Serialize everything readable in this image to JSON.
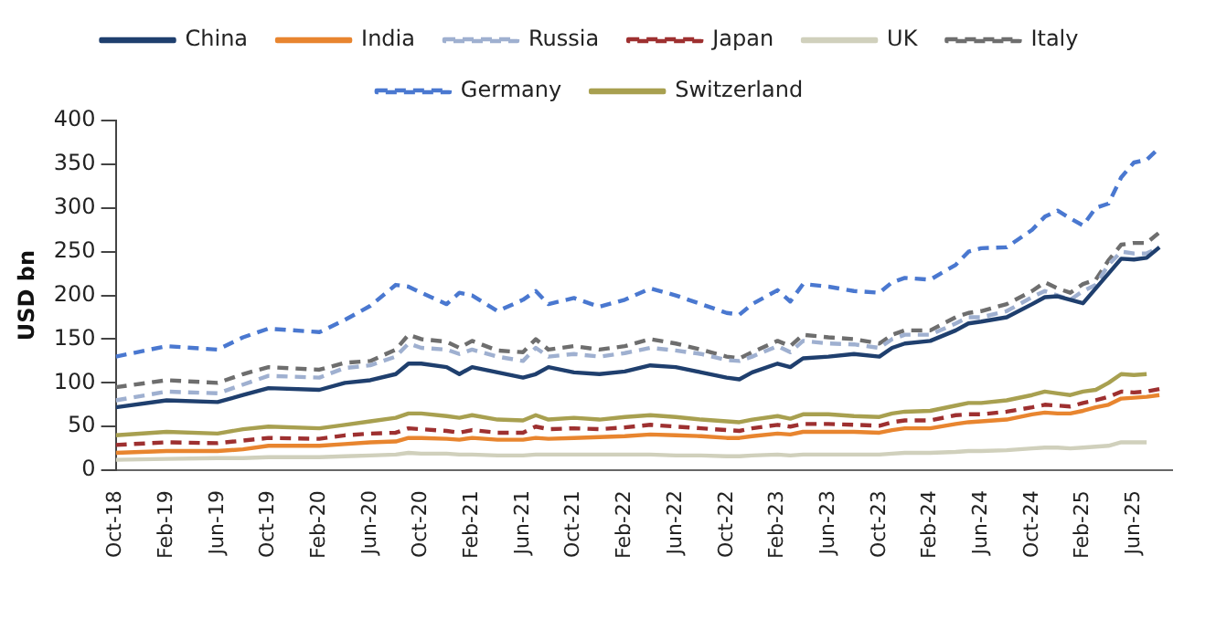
{
  "chart_data": {
    "type": "line",
    "ylabel": "USD bn",
    "ylim": [
      0,
      400
    ],
    "yticks": [
      0,
      50,
      100,
      150,
      200,
      250,
      300,
      350,
      400
    ],
    "grid": false,
    "legend": "top",
    "marker": "none",
    "xlim": [
      "2018-10",
      "2025-09"
    ],
    "xticks": [
      {
        "value": "2018-10",
        "label": "Oct-18"
      },
      {
        "value": "2019-02",
        "label": "Feb-19"
      },
      {
        "value": "2019-06",
        "label": "Jun-19"
      },
      {
        "value": "2019-10",
        "label": "Oct-19"
      },
      {
        "value": "2020-02",
        "label": "Feb-20"
      },
      {
        "value": "2020-06",
        "label": "Jun-20"
      },
      {
        "value": "2020-10",
        "label": "Oct-20"
      },
      {
        "value": "2021-02",
        "label": "Feb-21"
      },
      {
        "value": "2021-06",
        "label": "Jun-21"
      },
      {
        "value": "2021-10",
        "label": "Oct-21"
      },
      {
        "value": "2022-02",
        "label": "Feb-22"
      },
      {
        "value": "2022-06",
        "label": "Jun-22"
      },
      {
        "value": "2022-10",
        "label": "Oct-22"
      },
      {
        "value": "2023-02",
        "label": "Feb-23"
      },
      {
        "value": "2023-06",
        "label": "Jun-23"
      },
      {
        "value": "2023-10",
        "label": "Oct-23"
      },
      {
        "value": "2024-02",
        "label": "Feb-24"
      },
      {
        "value": "2024-06",
        "label": "Jun-24"
      },
      {
        "value": "2024-10",
        "label": "Oct-24"
      },
      {
        "value": "2025-02",
        "label": "Feb-25"
      },
      {
        "value": "2025-06",
        "label": "Jun-25"
      }
    ],
    "x": [
      "2018-10",
      "2019-02",
      "2019-06",
      "2019-08",
      "2019-10",
      "2020-02",
      "2020-04",
      "2020-06",
      "2020-08",
      "2020-09",
      "2020-10",
      "2020-12",
      "2021-01",
      "2021-02",
      "2021-04",
      "2021-06",
      "2021-07",
      "2021-08",
      "2021-10",
      "2021-12",
      "2022-02",
      "2022-04",
      "2022-06",
      "2022-08",
      "2022-10",
      "2022-11",
      "2022-12",
      "2023-02",
      "2023-03",
      "2023-04",
      "2023-06",
      "2023-08",
      "2023-10",
      "2023-11",
      "2023-12",
      "2024-02",
      "2024-04",
      "2024-05",
      "2024-06",
      "2024-08",
      "2024-10",
      "2024-11",
      "2024-12",
      "2025-01",
      "2025-02",
      "2025-03",
      "2025-04",
      "2025-05",
      "2025-06",
      "2025-07",
      "2025-08"
    ],
    "series": [
      {
        "name": "China",
        "color": "#1f3f6e",
        "line_style": "solid",
        "values": [
          72,
          80,
          78,
          86,
          94,
          92,
          100,
          103,
          110,
          122,
          122,
          118,
          110,
          118,
          112,
          106,
          110,
          118,
          112,
          110,
          113,
          120,
          118,
          112,
          106,
          104,
          112,
          122,
          118,
          128,
          130,
          133,
          130,
          140,
          145,
          148,
          160,
          168,
          170,
          175,
          190,
          198,
          199,
          195,
          191,
          208,
          225,
          242,
          241,
          243,
          255
        ]
      },
      {
        "name": "India",
        "color": "#e8852f",
        "line_style": "solid",
        "values": [
          20,
          22,
          22,
          24,
          28,
          28,
          30,
          32,
          33,
          37,
          37,
          36,
          35,
          37,
          35,
          35,
          37,
          36,
          37,
          38,
          39,
          41,
          40,
          39,
          37,
          37,
          39,
          42,
          41,
          44,
          44,
          44,
          43,
          46,
          48,
          48,
          53,
          55,
          56,
          58,
          64,
          66,
          65,
          65,
          68,
          72,
          75,
          82,
          83,
          84,
          86
        ]
      },
      {
        "name": "Russia",
        "color": "#9fb0d0",
        "line_style": "dashed",
        "values": [
          80,
          90,
          88,
          98,
          108,
          106,
          117,
          120,
          130,
          145,
          140,
          138,
          133,
          138,
          130,
          125,
          140,
          130,
          133,
          130,
          134,
          140,
          137,
          133,
          126,
          125,
          130,
          142,
          135,
          148,
          145,
          144,
          140,
          150,
          155,
          155,
          168,
          175,
          175,
          182,
          198,
          205,
          200,
          195,
          205,
          212,
          235,
          250,
          248,
          248,
          255
        ]
      },
      {
        "name": "Japan",
        "color": "#9e3030",
        "line_style": "dashed",
        "values": [
          29,
          32,
          31,
          34,
          37,
          36,
          40,
          42,
          43,
          48,
          47,
          45,
          43,
          46,
          43,
          43,
          50,
          47,
          48,
          47,
          49,
          52,
          50,
          48,
          46,
          45,
          48,
          52,
          50,
          53,
          53,
          52,
          51,
          55,
          57,
          57,
          63,
          64,
          64,
          67,
          72,
          75,
          74,
          73,
          77,
          80,
          84,
          90,
          89,
          90,
          93
        ]
      },
      {
        "name": "UK",
        "color": "#d0d0bc",
        "line_style": "solid",
        "values": [
          12,
          13,
          14,
          14,
          15,
          15,
          16,
          17,
          18,
          20,
          19,
          19,
          18,
          18,
          17,
          17,
          18,
          18,
          18,
          18,
          18,
          18,
          17,
          17,
          16,
          16,
          17,
          18,
          17,
          18,
          18,
          18,
          18,
          19,
          20,
          20,
          21,
          22,
          22,
          23,
          25,
          26,
          26,
          25,
          26,
          27,
          28,
          32,
          32,
          32,
          null
        ]
      },
      {
        "name": "Italy",
        "color": "#6e6e6e",
        "line_style": "dashed",
        "values": [
          95,
          103,
          100,
          110,
          118,
          115,
          123,
          125,
          138,
          155,
          150,
          147,
          140,
          148,
          137,
          135,
          150,
          138,
          142,
          138,
          142,
          150,
          145,
          138,
          130,
          128,
          135,
          148,
          142,
          155,
          152,
          150,
          145,
          155,
          160,
          160,
          175,
          180,
          182,
          190,
          205,
          215,
          208,
          203,
          213,
          218,
          240,
          258,
          260,
          260,
          272
        ]
      },
      {
        "name": "Germany",
        "color": "#4a78d0",
        "line_style": "dashed",
        "values": [
          130,
          142,
          138,
          152,
          162,
          158,
          172,
          188,
          212,
          210,
          203,
          190,
          203,
          200,
          182,
          195,
          205,
          190,
          197,
          187,
          195,
          208,
          200,
          190,
          180,
          178,
          190,
          206,
          193,
          213,
          210,
          205,
          203,
          215,
          220,
          218,
          235,
          250,
          254,
          255,
          275,
          290,
          297,
          288,
          280,
          300,
          305,
          335,
          352,
          355,
          369
        ]
      },
      {
        "name": "Switzerland",
        "color": "#a8a050",
        "line_style": "solid",
        "values": [
          40,
          44,
          42,
          47,
          50,
          48,
          52,
          56,
          60,
          65,
          65,
          62,
          60,
          63,
          58,
          57,
          63,
          58,
          60,
          58,
          61,
          63,
          61,
          58,
          56,
          55,
          58,
          62,
          59,
          64,
          64,
          62,
          61,
          65,
          67,
          68,
          74,
          77,
          77,
          80,
          86,
          90,
          88,
          86,
          90,
          92,
          100,
          110,
          109,
          110,
          null
        ]
      }
    ]
  }
}
